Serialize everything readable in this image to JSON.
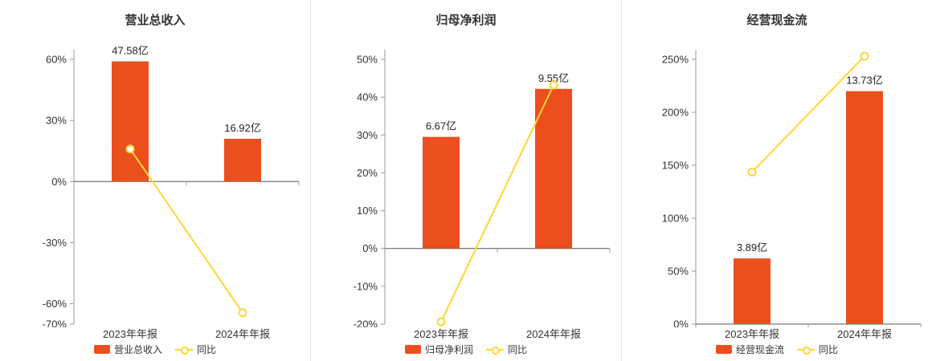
{
  "window": {
    "background": "#ffffff"
  },
  "colors": {
    "bar": "#ea4f1d",
    "line": "#ffd633",
    "marker_fill": "#ffffff",
    "axis": "#999999",
    "zero_axis": "#555555",
    "tick_text": "#333333",
    "bar_label_text": "#222222",
    "title_text": "#333333",
    "divider": "#e2e2e2"
  },
  "chart_data": [
    {
      "type": "bar+line",
      "title": "营业总收入",
      "categories": [
        "2023年年报",
        "2024年年报"
      ],
      "bar_series": {
        "name": "营业总收入",
        "value_labels": [
          "47.58亿",
          "16.92亿"
        ],
        "display_values_pct": [
          59,
          21
        ]
      },
      "line_series": {
        "name": "同比",
        "values_pct": [
          16,
          -64.4
        ]
      },
      "ylim": [
        -70,
        60
      ],
      "yticks": [
        60,
        30,
        0,
        -30,
        -60,
        -70
      ],
      "ytick_suffix": "%",
      "grid": false,
      "legend_position": "bottom"
    },
    {
      "type": "bar+line",
      "title": "归母净利润",
      "categories": [
        "2023年年报",
        "2024年年报"
      ],
      "bar_series": {
        "name": "归母净利润",
        "value_labels": [
          "6.67亿",
          "9.55亿"
        ],
        "display_values_pct": [
          29.5,
          42.2
        ]
      },
      "line_series": {
        "name": "同比",
        "values_pct": [
          -19.4,
          43.2
        ]
      },
      "ylim": [
        -20,
        50
      ],
      "yticks": [
        50,
        40,
        30,
        20,
        10,
        0,
        -10,
        -20
      ],
      "ytick_suffix": "%",
      "grid": false,
      "legend_position": "bottom"
    },
    {
      "type": "bar+line",
      "title": "经营现金流",
      "categories": [
        "2023年年报",
        "2024年年报"
      ],
      "bar_series": {
        "name": "经营现金流",
        "value_labels": [
          "3.89亿",
          "13.73亿"
        ],
        "display_values_pct": [
          62,
          220
        ]
      },
      "line_series": {
        "name": "同比",
        "values_pct": [
          143.6,
          253
        ]
      },
      "ylim": [
        0,
        250
      ],
      "yticks": [
        250,
        200,
        150,
        100,
        50,
        0
      ],
      "ytick_suffix": "%",
      "grid": false,
      "legend_position": "bottom"
    }
  ]
}
